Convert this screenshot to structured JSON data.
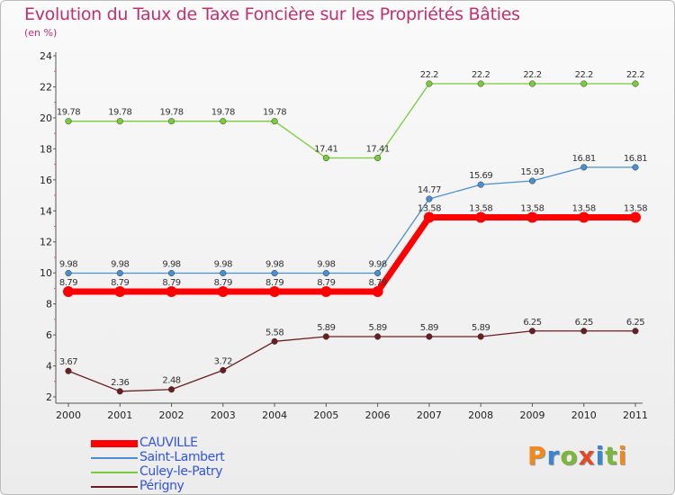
{
  "header": {
    "title": "Evolution du Taux de Taxe Foncière sur les Propriétés Bâties",
    "unit": "(en %)"
  },
  "logo": {
    "text": "Proxiti",
    "colors": [
      "#f08a1c",
      "#3a86d0",
      "#7ab83a",
      "#e04a2a",
      "#3a86d0",
      "#7ab83a",
      "#f08a1c"
    ]
  },
  "chart_data": {
    "type": "line",
    "title": "Evolution du Taux de Taxe Foncière sur les Propriétés Bâties",
    "ylabel": "(en %)",
    "xlabel": "",
    "ylim": [
      2,
      24
    ],
    "yticks": [
      2,
      4,
      6,
      8,
      10,
      12,
      14,
      16,
      18,
      20,
      22,
      24
    ],
    "categories": [
      "2000",
      "2001",
      "2002",
      "2003",
      "2004",
      "2005",
      "2006",
      "2007",
      "2008",
      "2009",
      "2010",
      "2011"
    ],
    "grid": false,
    "legend": "bottom-left",
    "series": [
      {
        "name": "CAUVILLE",
        "color": "#ff0000",
        "values": [
          8.79,
          8.79,
          8.79,
          8.79,
          8.79,
          8.79,
          8.79,
          13.58,
          13.58,
          13.58,
          13.58,
          13.58
        ],
        "labels": [
          "8.79",
          "8.79",
          "8.79",
          "8.79",
          "8.79",
          "8.79",
          "8.79",
          "13.58",
          "13.58",
          "13.58",
          "13.58",
          "13.58"
        ]
      },
      {
        "name": "Saint-Lambert",
        "color": "#4a90d0",
        "values": [
          9.98,
          9.98,
          9.98,
          9.98,
          9.98,
          9.98,
          9.98,
          14.77,
          15.69,
          15.93,
          16.81,
          16.81
        ],
        "labels": [
          "9.98",
          "9.98",
          "9.98",
          "9.98",
          "9.98",
          "9.98",
          "9.98",
          "14.77",
          "15.69",
          "15.93",
          "16.81",
          "16.81"
        ]
      },
      {
        "name": "Culey-le-Patry",
        "color": "#7acc3a",
        "values": [
          19.78,
          19.78,
          19.78,
          19.78,
          19.78,
          17.41,
          17.41,
          22.2,
          22.2,
          22.2,
          22.2,
          22.2
        ],
        "labels": [
          "19.78",
          "19.78",
          "19.78",
          "19.78",
          "19.78",
          "17.41",
          "17.41",
          "22.2",
          "22.2",
          "22.2",
          "22.2",
          "22.2"
        ]
      },
      {
        "name": "Périgny",
        "color": "#6b1e22",
        "values": [
          3.67,
          2.36,
          2.48,
          3.72,
          5.58,
          5.89,
          5.89,
          5.89,
          5.89,
          6.25,
          6.25,
          6.25
        ],
        "labels": [
          "3.67",
          "2.36",
          "2.48",
          "3.72",
          "5.58",
          "5.89",
          "5.89",
          "5.89",
          "5.89",
          "6.25",
          "6.25",
          "6.25"
        ]
      }
    ]
  }
}
